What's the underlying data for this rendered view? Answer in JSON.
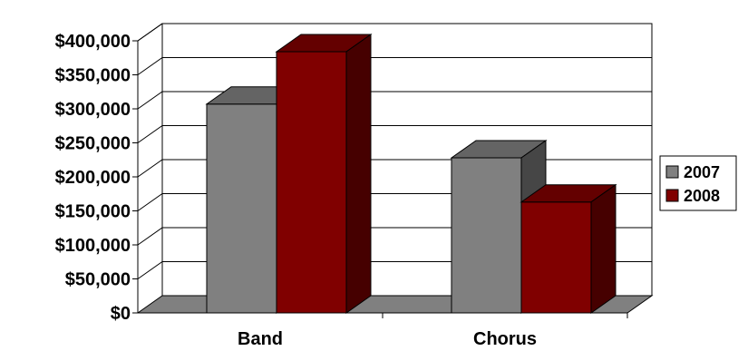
{
  "chart_data": {
    "type": "bar",
    "title": "",
    "xlabel": "",
    "ylabel": "",
    "categories": [
      "Band",
      "Chorus"
    ],
    "series": [
      {
        "name": "2007",
        "values": [
          307000,
          228000
        ],
        "color": "#808080"
      },
      {
        "name": "2008",
        "values": [
          384000,
          163000
        ],
        "color": "#800000"
      }
    ],
    "ylim": [
      0,
      400000
    ],
    "y_ticks": [
      "$0",
      "$50,000",
      "$100,000",
      "$150,000",
      "$200,000",
      "$250,000",
      "$300,000",
      "$350,000",
      "$400,000"
    ],
    "grid": true,
    "style": "3d-clustered-column",
    "legend_position": "right"
  }
}
